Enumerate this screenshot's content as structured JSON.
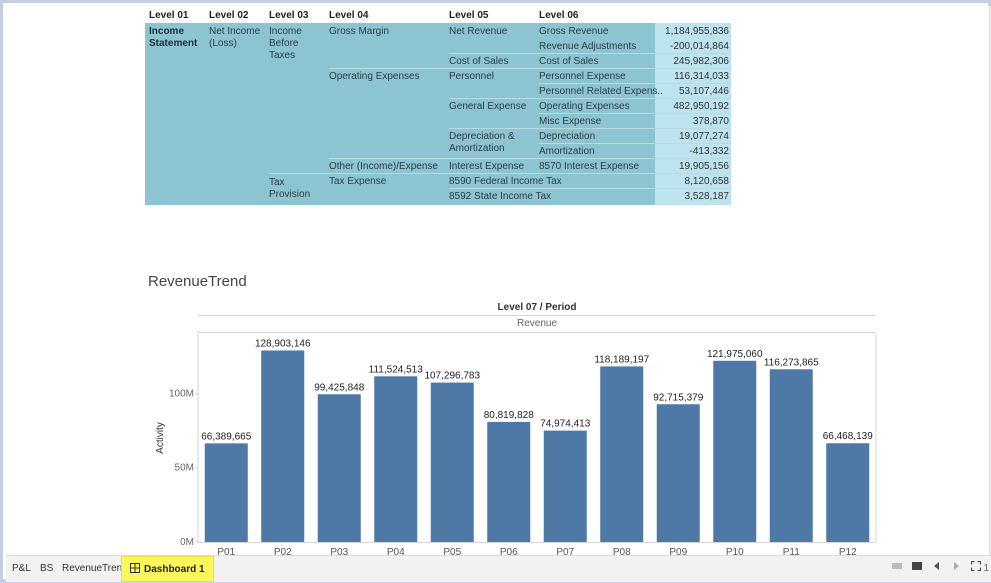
{
  "table": {
    "headers": [
      "Level 01",
      "Level 02",
      "Level 03",
      "Level 04",
      "Level 05",
      "Level 06"
    ],
    "level01": "Income Statement",
    "level02": "Net Income (Loss)",
    "level03": [
      "Income Before Taxes",
      "Tax Provision"
    ],
    "level04": [
      "Gross Margin",
      "Operating Expenses",
      "Other (Income)/Expense",
      "Tax Expense"
    ],
    "level05": [
      "Net Revenue",
      "Cost of Sales",
      "Personnel",
      "General Expense",
      "Depreciation & Amortization",
      "Interest Expense",
      "8590 Federal Income Tax",
      "8592 State Income Tax"
    ],
    "level06": [
      "Gross Revenue",
      "Revenue Adjustments",
      "Cost of Sales",
      "Personnel Expense",
      "Personnel Related Expens..",
      "Operating Expenses",
      "Misc Expense",
      "Depreciation",
      "Amortization",
      "8570 Interest Expense"
    ],
    "values": [
      "1,184,955,836",
      "-200,014,864",
      "245,982,306",
      "116,314,033",
      "53,107,446",
      "482,950,192",
      "378,870",
      "19,077,274",
      "-413,332",
      "19,905,156",
      "8,120,658",
      "3,528,187"
    ]
  },
  "chart_title": "RevenueTrend",
  "chart_header": {
    "level": "Level 07  /  Period",
    "sub": "Revenue"
  },
  "chart_data": {
    "type": "bar",
    "categories": [
      "P01",
      "P02",
      "P03",
      "P04",
      "P05",
      "P06",
      "P07",
      "P08",
      "P09",
      "P10",
      "P11",
      "P12"
    ],
    "values": [
      66389665,
      128903146,
      99425848,
      111524513,
      107296783,
      80819828,
      74974413,
      118189197,
      92715379,
      121975060,
      116273865,
      66468139
    ],
    "data_labels": [
      "66,389,665",
      "128,903,146",
      "99,425,848",
      "111,524,513",
      "107,296,783",
      "80,819,828",
      "74,974,413",
      "118,189,197",
      "92,715,379",
      "121,975,060",
      "116,273,865",
      "66,468,139"
    ],
    "ylabel": "Activity",
    "ytick_values": [
      0,
      50000000,
      100000000
    ],
    "ytick_labels": [
      "0M",
      "50M",
      "100M"
    ],
    "ylim": [
      0,
      140000000
    ],
    "color": "#4e79a7"
  },
  "tabs": [
    {
      "label": "P&L",
      "active": false
    },
    {
      "label": "BS",
      "active": false
    },
    {
      "label": "RevenueTrend",
      "active": false
    },
    {
      "label": "Dashboard 1",
      "active": true
    }
  ],
  "page_indicator": "1"
}
